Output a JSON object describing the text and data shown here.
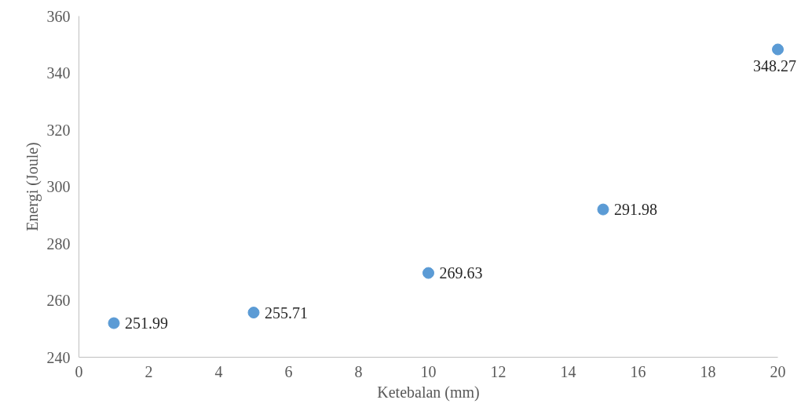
{
  "chart_data": {
    "type": "scatter",
    "xlabel": "Ketebalan (mm)",
    "ylabel": "Energi (Joule)",
    "x": [
      1,
      5,
      10,
      15,
      20
    ],
    "values": [
      251.99,
      255.71,
      269.63,
      291.98,
      348.27
    ],
    "color": "#5b9bd5",
    "xlim": [
      0,
      20
    ],
    "ylim": [
      240,
      360
    ],
    "xticks": [
      0,
      2,
      4,
      6,
      8,
      10,
      12,
      14,
      16,
      18,
      20
    ],
    "yticks": [
      240,
      260,
      280,
      300,
      320,
      340,
      360
    ],
    "grid": false,
    "marker": "circle",
    "data_labels": true
  }
}
